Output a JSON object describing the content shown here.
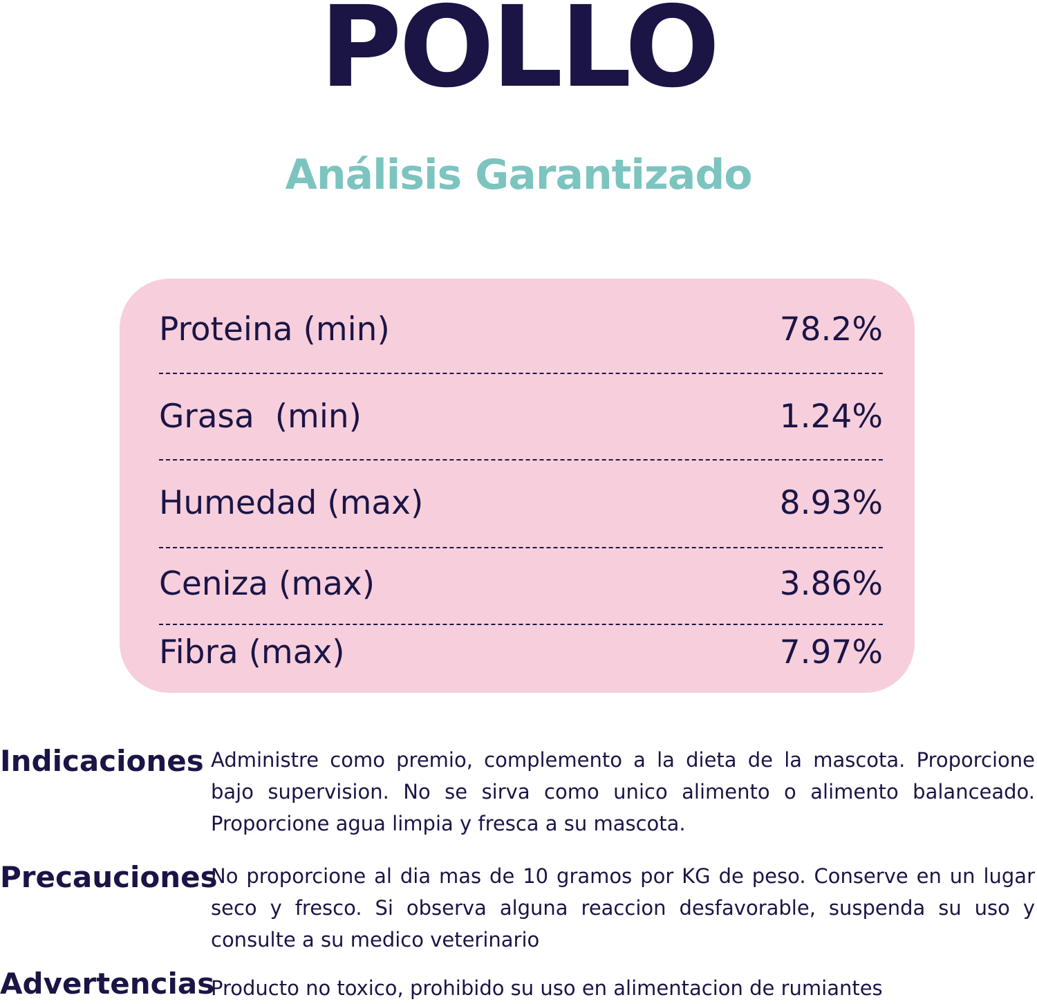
{
  "title": "POLLO",
  "subtitle": "Análisis Garantizado",
  "colors": {
    "navy": "#1a1545",
    "teal": "#7cc4bf",
    "pink": "#f7cedc"
  },
  "analysis": [
    {
      "label": "Proteina (min)",
      "value": "78.2%"
    },
    {
      "label": "Grasa  (min)",
      "value": "1.24%"
    },
    {
      "label": "Humedad (max)",
      "value": "8.93%"
    },
    {
      "label": "Ceniza (max)",
      "value": "3.86%"
    },
    {
      "label": "Fibra (max)",
      "value": "7.97%"
    }
  ],
  "sections": [
    {
      "heading": "Indicaciones",
      "text": "Administre como premio, complemento a la dieta de la mascota. Proporcione bajo supervision. No se sirva como unico alimento o alimento balanceado. Proporcione agua limpia y fresca a su mascota."
    },
    {
      "heading": "Precauciones",
      "text": "No proporcione al dia mas de 10 gramos por KG de peso. Conserve en un lugar seco y fresco. Si observa alguna reaccion desfavorable, suspenda su uso y consulte a su medico veterinario"
    },
    {
      "heading": "Advertencias",
      "text": "Producto no toxico, prohibido su uso en alimentacion de rumiantes"
    }
  ]
}
